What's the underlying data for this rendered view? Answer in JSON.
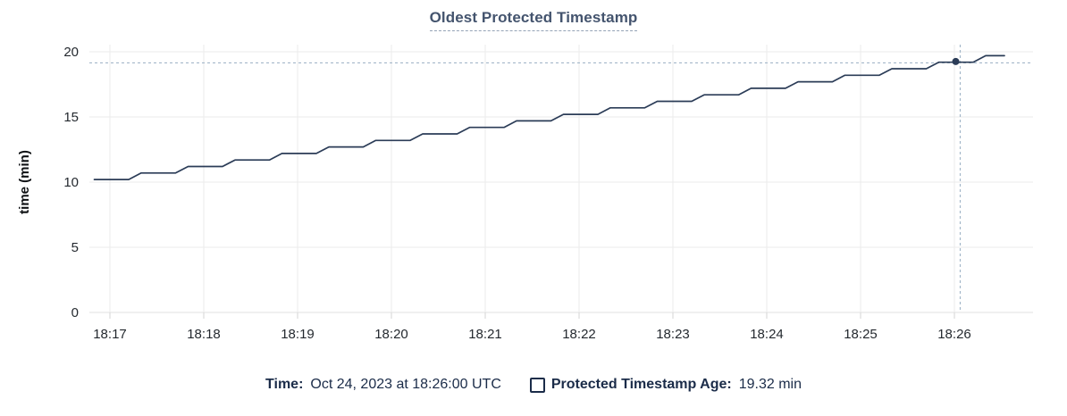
{
  "title": {
    "text": "Oldest Protected Timestamp"
  },
  "legend": {
    "time_label": "Time:",
    "time_value": "Oct 24, 2023 at 18:26:00 UTC",
    "series_checkbox_checked": false,
    "series_label": "Protected Timestamp Age:",
    "series_value": "19.32 min"
  },
  "colors": {
    "title": "#44546e",
    "line": "#2b3c57",
    "crosshair": "#a3b7c9",
    "grid": "#ebebeb",
    "axis": "#e0e0e0",
    "tick_stub": "#d6d6d6",
    "legend_text": "#1b2c49"
  },
  "chart_data": {
    "type": "line",
    "title": "Oldest Protected Timestamp",
    "xlabel": "",
    "ylabel": "time (min)",
    "ylim": [
      0,
      20
    ],
    "y_ticks": [
      0,
      5,
      10,
      15,
      20
    ],
    "x_tick_labels": [
      "18:17",
      "18:18",
      "18:19",
      "18:20",
      "18:21",
      "18:22",
      "18:23",
      "18:24",
      "18:25",
      "18:26"
    ],
    "grid": true,
    "legend_position": "bottom",
    "series": [
      {
        "name": "Protected Timestamp Age",
        "unit": "min",
        "points": [
          [
            "18:16:50",
            10.2
          ],
          [
            "18:17:12",
            10.2
          ],
          [
            "18:17:20",
            10.7
          ],
          [
            "18:17:42",
            10.7
          ],
          [
            "18:17:50",
            11.2
          ],
          [
            "18:18:12",
            11.2
          ],
          [
            "18:18:20",
            11.7
          ],
          [
            "18:18:42",
            11.7
          ],
          [
            "18:18:50",
            12.2
          ],
          [
            "18:19:12",
            12.2
          ],
          [
            "18:19:20",
            12.7
          ],
          [
            "18:19:42",
            12.7
          ],
          [
            "18:19:50",
            13.2
          ],
          [
            "18:20:12",
            13.2
          ],
          [
            "18:20:20",
            13.7
          ],
          [
            "18:20:42",
            13.7
          ],
          [
            "18:20:50",
            14.2
          ],
          [
            "18:21:12",
            14.2
          ],
          [
            "18:21:20",
            14.7
          ],
          [
            "18:21:42",
            14.7
          ],
          [
            "18:21:50",
            15.2
          ],
          [
            "18:22:12",
            15.2
          ],
          [
            "18:22:20",
            15.7
          ],
          [
            "18:22:42",
            15.7
          ],
          [
            "18:22:50",
            16.2
          ],
          [
            "18:23:12",
            16.2
          ],
          [
            "18:23:20",
            16.7
          ],
          [
            "18:23:42",
            16.7
          ],
          [
            "18:23:50",
            17.2
          ],
          [
            "18:24:12",
            17.2
          ],
          [
            "18:24:20",
            17.7
          ],
          [
            "18:24:42",
            17.7
          ],
          [
            "18:24:50",
            18.2
          ],
          [
            "18:25:12",
            18.2
          ],
          [
            "18:25:20",
            18.7
          ],
          [
            "18:25:42",
            18.7
          ],
          [
            "18:25:50",
            19.2
          ],
          [
            "18:26:12",
            19.2
          ],
          [
            "18:26:20",
            19.7
          ],
          [
            "18:26:32",
            19.7
          ]
        ]
      }
    ],
    "crosshair": {
      "time": "18:26:00",
      "value": 19.32
    }
  }
}
